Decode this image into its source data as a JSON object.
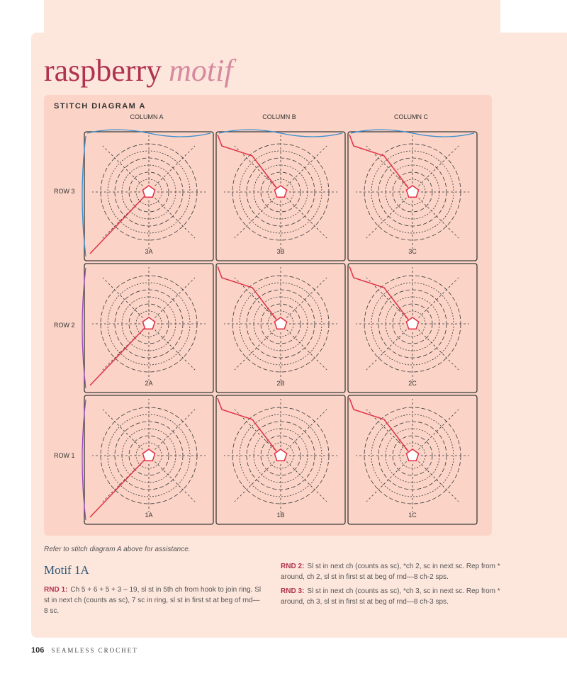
{
  "page": {
    "title_word1": "raspberry",
    "title_word2": "motif"
  },
  "diagram": {
    "title": "STITCH DIAGRAM A",
    "columns": [
      "COLUMN A",
      "COLUMN B",
      "COLUMN C"
    ],
    "rows": [
      "ROW 3",
      "ROW 2",
      "ROW 1"
    ],
    "motif_labels": [
      [
        "3A",
        "3B",
        "3C"
      ],
      [
        "2A",
        "2B",
        "2C"
      ],
      [
        "1A",
        "1B",
        "1C"
      ]
    ],
    "colors": {
      "stitch": "#3a3a3a",
      "ring": "#e0374b",
      "path": "#e0374b",
      "join_blue": "#3a8fd1",
      "join_purple": "#9b4fc4"
    }
  },
  "caption": "Refer to stitch diagram A above for assistance.",
  "section": {
    "title": "Motif 1A",
    "rnd1_label": "RND 1:",
    "rnd1_text": "Ch 5 + 6 + 5 + 3 – 19, sl st in 5th ch from hook to join ring. Sl st in next ch (counts as sc), 7 sc in ring, sl st in first st at beg of rnd—8 sc.",
    "rnd2_label": "RND 2:",
    "rnd2_text": "Sl st in next ch (counts as sc), *ch 2, sc in next sc. Rep from * around, ch 2, sl st in first st at beg of rnd—8 ch-2 sps.",
    "rnd3_label": "RND 3:",
    "rnd3_text": "Sl st in next ch (counts as sc), *ch 3, sc in next sc. Rep from * around, ch 3, sl st in first st at beg of rnd—8 ch-3 sps."
  },
  "footer": {
    "page_number": "106",
    "book_title": "SEAMLESS CROCHET"
  }
}
